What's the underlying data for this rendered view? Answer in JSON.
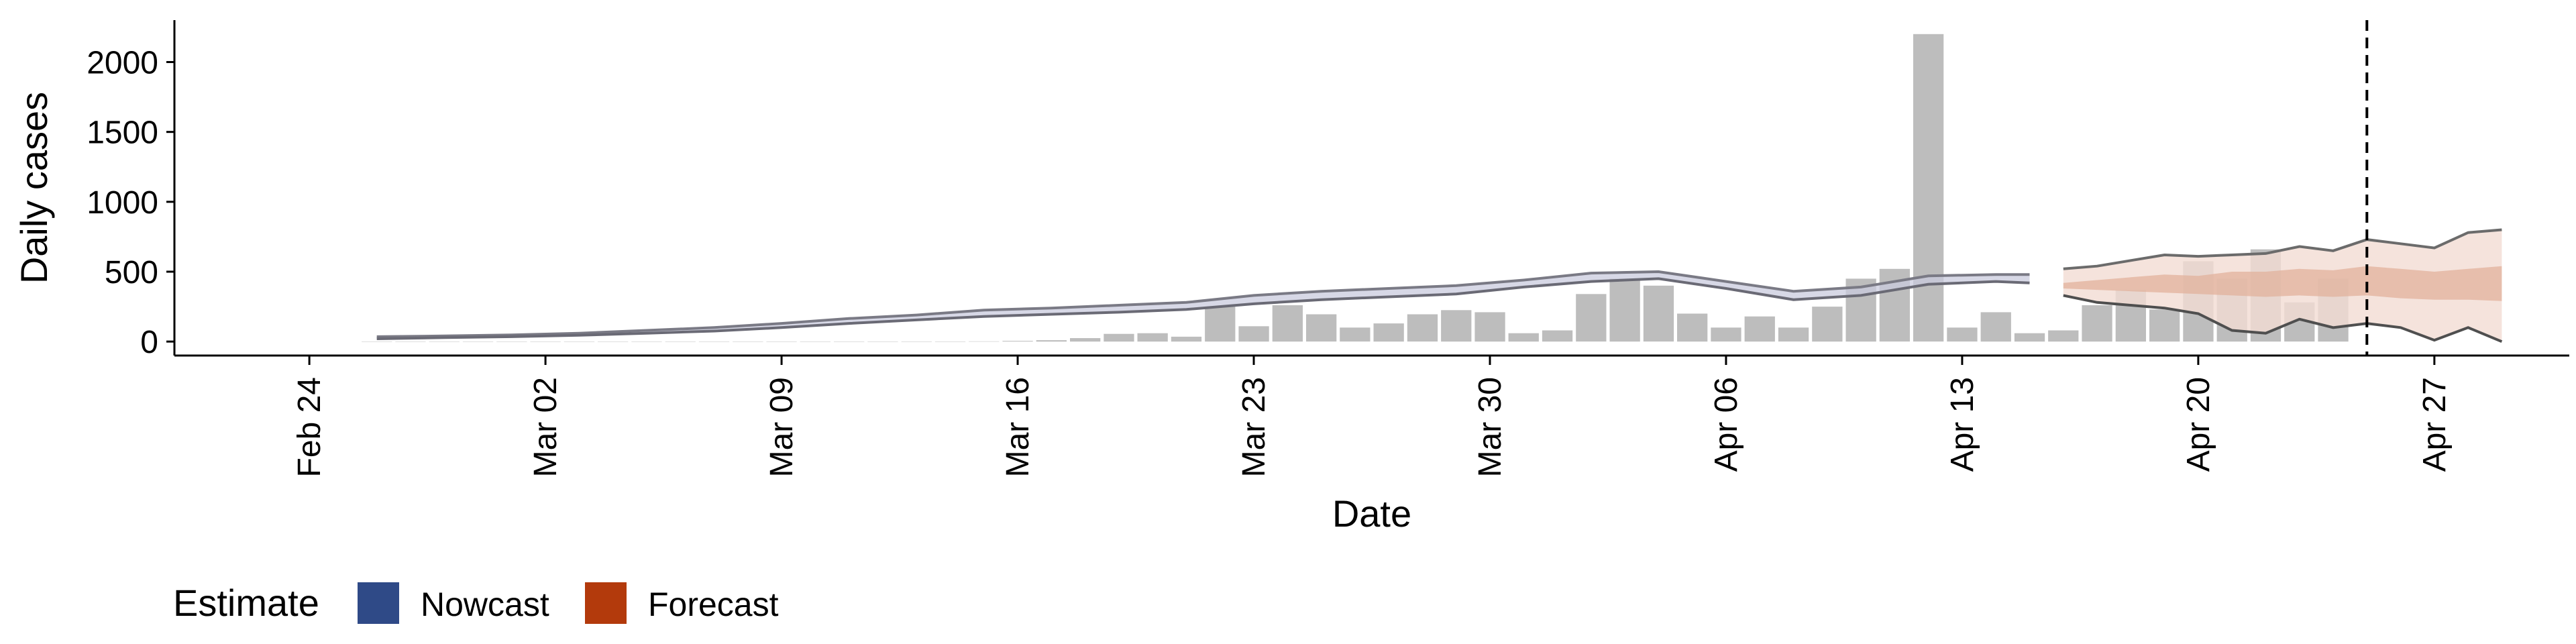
{
  "chart_data": {
    "type": "bar",
    "xlabel": "Date",
    "ylabel": "Daily cases",
    "x_tick_labels": [
      "Feb 24",
      "Mar 02",
      "Mar 09",
      "Mar 16",
      "Mar 23",
      "Mar 30",
      "Apr 06",
      "Apr 13",
      "Apr 20",
      "Apr 27"
    ],
    "x_tick_dates": [
      "2020-02-24",
      "2020-03-02",
      "2020-03-09",
      "2020-03-16",
      "2020-03-23",
      "2020-03-30",
      "2020-04-06",
      "2020-04-13",
      "2020-04-20",
      "2020-04-27"
    ],
    "xlim": [
      "2020-02-20",
      "2020-05-01"
    ],
    "y_ticks": [
      0,
      500,
      1000,
      1500,
      2000
    ],
    "ylim": [
      -100,
      2300
    ],
    "grid": false,
    "legend": {
      "position": "bottom-left",
      "title": "Estimate",
      "entries": [
        {
          "label": "Nowcast",
          "color": "#2f4a87"
        },
        {
          "label": "Forecast",
          "color": "#b33a0c"
        }
      ]
    },
    "vline": {
      "date": "2020-04-25",
      "style": "dashed"
    },
    "bar_color": "#bdbdbd",
    "observed_cases": {
      "dates": [
        "2020-02-26",
        "2020-02-27",
        "2020-02-28",
        "2020-02-29",
        "2020-03-01",
        "2020-03-02",
        "2020-03-03",
        "2020-03-04",
        "2020-03-05",
        "2020-03-06",
        "2020-03-07",
        "2020-03-08",
        "2020-03-09",
        "2020-03-10",
        "2020-03-11",
        "2020-03-12",
        "2020-03-13",
        "2020-03-14",
        "2020-03-15",
        "2020-03-16",
        "2020-03-17",
        "2020-03-18",
        "2020-03-19",
        "2020-03-20",
        "2020-03-21",
        "2020-03-22",
        "2020-03-23",
        "2020-03-24",
        "2020-03-25",
        "2020-03-26",
        "2020-03-27",
        "2020-03-28",
        "2020-03-29",
        "2020-03-30",
        "2020-03-31",
        "2020-04-01",
        "2020-04-02",
        "2020-04-03",
        "2020-04-04",
        "2020-04-05",
        "2020-04-06",
        "2020-04-07",
        "2020-04-08",
        "2020-04-09",
        "2020-04-10",
        "2020-04-11",
        "2020-04-12",
        "2020-04-13",
        "2020-04-14",
        "2020-04-15",
        "2020-04-16",
        "2020-04-17",
        "2020-04-18",
        "2020-04-19",
        "2020-04-20",
        "2020-04-21",
        "2020-04-22",
        "2020-04-23",
        "2020-04-24"
      ],
      "values": [
        0,
        0,
        0,
        0,
        0,
        0,
        0,
        0,
        0,
        0,
        0,
        0,
        0,
        0,
        0,
        0,
        0,
        0,
        2,
        5,
        10,
        25,
        55,
        60,
        35,
        250,
        110,
        260,
        195,
        100,
        130,
        195,
        225,
        210,
        60,
        80,
        340,
        450,
        400,
        200,
        100,
        180,
        100,
        250,
        450,
        520,
        2200,
        100,
        210,
        60,
        80,
        260,
        370,
        230,
        575,
        450,
        660,
        280,
        450
      ]
    },
    "series": [
      {
        "name": "Nowcast",
        "dates": [
          "2020-02-26",
          "2020-02-28",
          "2020-03-01",
          "2020-03-03",
          "2020-03-05",
          "2020-03-07",
          "2020-03-09",
          "2020-03-11",
          "2020-03-13",
          "2020-03-15",
          "2020-03-17",
          "2020-03-19",
          "2020-03-21",
          "2020-03-23",
          "2020-03-25",
          "2020-03-27",
          "2020-03-29",
          "2020-03-31",
          "2020-04-02",
          "2020-04-04",
          "2020-04-06",
          "2020-04-08",
          "2020-04-10",
          "2020-04-12",
          "2020-04-14",
          "2020-04-15"
        ],
        "upper": [
          35,
          40,
          48,
          60,
          80,
          100,
          130,
          165,
          190,
          225,
          240,
          260,
          280,
          330,
          360,
          380,
          400,
          440,
          490,
          500,
          430,
          360,
          390,
          470,
          480,
          480
        ],
        "lower": [
          20,
          28,
          35,
          45,
          60,
          75,
          100,
          130,
          155,
          180,
          195,
          210,
          230,
          270,
          300,
          320,
          340,
          390,
          430,
          450,
          380,
          300,
          330,
          410,
          430,
          420
        ]
      },
      {
        "name": "Forecast",
        "dates": [
          "2020-04-16",
          "2020-04-17",
          "2020-04-18",
          "2020-04-19",
          "2020-04-20",
          "2020-04-21",
          "2020-04-22",
          "2020-04-23",
          "2020-04-24",
          "2020-04-25",
          "2020-04-26",
          "2020-04-27",
          "2020-04-28",
          "2020-04-29"
        ],
        "upper": [
          520,
          540,
          580,
          620,
          610,
          620,
          630,
          680,
          650,
          730,
          700,
          670,
          780,
          800
        ],
        "lower": [
          330,
          280,
          260,
          240,
          200,
          80,
          60,
          160,
          100,
          130,
          100,
          10,
          100,
          0
        ],
        "inner_upper": [
          420,
          440,
          460,
          480,
          470,
          500,
          500,
          520,
          510,
          540,
          520,
          500,
          520,
          540
        ],
        "inner_lower": [
          380,
          370,
          360,
          350,
          340,
          330,
          320,
          330,
          320,
          330,
          310,
          300,
          300,
          290
        ]
      }
    ]
  }
}
